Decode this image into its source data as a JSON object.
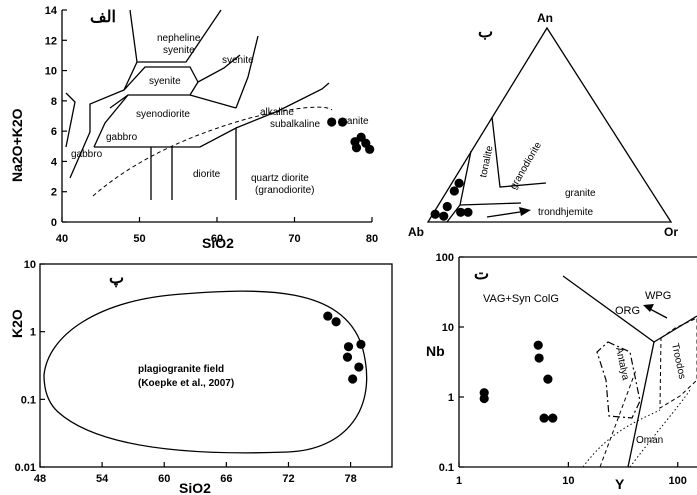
{
  "chart_data": [
    {
      "panel": "الف",
      "type": "scatter",
      "xlabel": "SiO2",
      "ylabel": "Na2O+K2O",
      "xlim": [
        40,
        80
      ],
      "ylim": [
        0,
        14
      ],
      "x_ticks": [
        "40",
        "50",
        "60",
        "70",
        "80"
      ],
      "y_ticks": [
        "0",
        "2",
        "4",
        "6",
        "8",
        "10",
        "12",
        "14"
      ],
      "field_labels": [
        "nepheline",
        "syenite",
        "syenite",
        "syenite",
        "syenodiorite",
        "gabbro",
        "gabbro",
        "diorite",
        "quartz diorite",
        "(granodiorite)",
        "alkaline",
        "subalkaline",
        "granite"
      ],
      "points": [
        {
          "x": 74.8,
          "y": 6.6
        },
        {
          "x": 76.2,
          "y": 6.6
        },
        {
          "x": 77.8,
          "y": 5.3
        },
        {
          "x": 78.6,
          "y": 5.6
        },
        {
          "x": 78.0,
          "y": 4.9
        },
        {
          "x": 79.2,
          "y": 5.2
        },
        {
          "x": 79.7,
          "y": 4.8
        }
      ]
    },
    {
      "panel": "ب",
      "type": "scatter",
      "vertices": [
        "An",
        "Ab",
        "Or"
      ],
      "field_labels": [
        "tonalite",
        "granodiorite",
        "granite",
        "trondhjemite"
      ],
      "points": [
        {
          "An": 0.04,
          "Ab": 0.95,
          "Or": 0.01
        },
        {
          "An": 0.03,
          "Ab": 0.92,
          "Or": 0.05
        },
        {
          "An": 0.08,
          "Ab": 0.88,
          "Or": 0.04
        },
        {
          "An": 0.16,
          "Ab": 0.81,
          "Or": 0.03
        },
        {
          "An": 0.2,
          "Ab": 0.77,
          "Or": 0.03
        },
        {
          "An": 0.05,
          "Ab": 0.84,
          "Or": 0.11
        },
        {
          "An": 0.05,
          "Ab": 0.81,
          "Or": 0.14
        }
      ]
    },
    {
      "panel": "پ",
      "type": "scatter",
      "xlabel": "SiO2",
      "ylabel": "K2O",
      "xlim": [
        48,
        82
      ],
      "ylim": [
        0.01,
        10
      ],
      "y_scale": "log",
      "x_ticks": [
        "48",
        "54",
        "60",
        "66",
        "72",
        "78"
      ],
      "y_ticks": [
        "0.01",
        "0.1",
        "1",
        "10"
      ],
      "field_labels": [
        "plagiogranite field",
        "(Koepke et al., 2007)"
      ],
      "points": [
        {
          "x": 75.8,
          "y": 1.7
        },
        {
          "x": 76.6,
          "y": 1.4
        },
        {
          "x": 77.8,
          "y": 0.6
        },
        {
          "x": 79.0,
          "y": 0.65
        },
        {
          "x": 77.7,
          "y": 0.42
        },
        {
          "x": 78.8,
          "y": 0.3
        },
        {
          "x": 78.2,
          "y": 0.2
        }
      ]
    },
    {
      "panel": "ت",
      "type": "scatter",
      "xlabel": "Y",
      "ylabel": "Nb",
      "x_scale": "log",
      "y_scale": "log",
      "xlim": [
        1,
        150
      ],
      "ylim": [
        0.1,
        100
      ],
      "x_ticks": [
        "1",
        "10",
        "100"
      ],
      "y_ticks": [
        "0.1",
        "1",
        "10",
        "100"
      ],
      "field_labels": [
        "VAG+Syn ColG",
        "WPG",
        "ORG",
        "Antalya",
        "Troodos",
        "Oman"
      ],
      "points": [
        {
          "x": 1.7,
          "y": 1.15
        },
        {
          "x": 1.7,
          "y": 0.95
        },
        {
          "x": 5.3,
          "y": 5.5
        },
        {
          "x": 5.4,
          "y": 3.6
        },
        {
          "x": 6.5,
          "y": 1.8
        },
        {
          "x": 6.0,
          "y": 0.5
        },
        {
          "x": 7.2,
          "y": 0.5
        }
      ]
    }
  ]
}
